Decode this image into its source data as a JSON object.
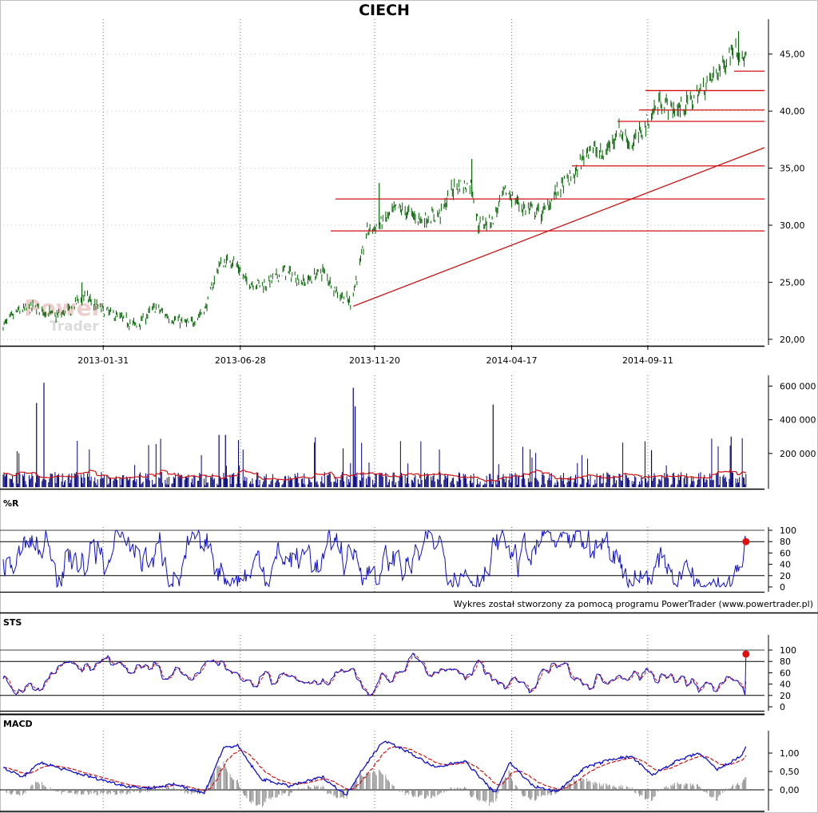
{
  "chart_title": "CIECH",
  "watermark": {
    "top": "Power",
    "bottom": "Trader"
  },
  "credit": "Wykres został stworzony za pomocą programu PowerTrader (www.powertrader.pl)",
  "colors": {
    "candle": "#006400",
    "volume": "#000080",
    "average": "#d01010",
    "line": "#1010cc",
    "grid": "#777777"
  },
  "chart_data": [
    {
      "type": "candlestick",
      "title": "CIECH",
      "xlabel": "",
      "ylabel": "",
      "x_ticks": [
        "2013-01-31",
        "2013-06-28",
        "2013-11-20",
        "2014-04-17",
        "2014-09-11"
      ],
      "y_ticks": [
        "20,00",
        "25,00",
        "30,00",
        "35,00",
        "40,00",
        "45,00"
      ],
      "ylim": [
        19.5,
        47.5
      ],
      "x_range": [
        "2012-10-15",
        "2015-01-15"
      ],
      "close_path": [
        [
          "2012-10-15",
          21.2
        ],
        [
          "2012-11-01",
          22.5
        ],
        [
          "2012-11-20",
          22.8
        ],
        [
          "2012-12-10",
          22.0
        ],
        [
          "2012-12-28",
          22.6
        ],
        [
          "2013-01-08",
          24.0
        ],
        [
          "2013-01-25",
          22.8
        ],
        [
          "2013-02-15",
          22.0
        ],
        [
          "2013-03-08",
          21.2
        ],
        [
          "2013-03-28",
          22.8
        ],
        [
          "2013-04-15",
          21.8
        ],
        [
          "2013-05-05",
          21.3
        ],
        [
          "2013-05-22",
          22.8
        ],
        [
          "2013-06-05",
          26.5
        ],
        [
          "2013-06-20",
          27.0
        ],
        [
          "2013-07-05",
          25.0
        ],
        [
          "2013-07-25",
          24.8
        ],
        [
          "2013-08-15",
          26.0
        ],
        [
          "2013-09-05",
          25.0
        ],
        [
          "2013-09-25",
          26.0
        ],
        [
          "2013-10-12",
          24.0
        ],
        [
          "2013-10-25",
          23.2
        ],
        [
          "2013-11-05",
          26.8
        ],
        [
          "2013-11-12",
          29.5
        ],
        [
          "2013-11-25",
          30.0
        ],
        [
          "2013-12-15",
          31.5
        ],
        [
          "2014-01-10",
          30.5
        ],
        [
          "2014-01-30",
          31.0
        ],
        [
          "2014-02-15",
          33.5
        ],
        [
          "2014-03-05",
          33.5
        ],
        [
          "2014-03-12",
          30.0
        ],
        [
          "2014-03-28",
          30.5
        ],
        [
          "2014-04-10",
          33.0
        ],
        [
          "2014-04-30",
          31.5
        ],
        [
          "2014-05-20",
          31.0
        ],
        [
          "2014-06-05",
          33.0
        ],
        [
          "2014-06-25",
          34.5
        ],
        [
          "2014-07-10",
          37.0
        ],
        [
          "2014-07-25",
          36.0
        ],
        [
          "2014-08-10",
          38.5
        ],
        [
          "2014-08-25",
          37.0
        ],
        [
          "2014-09-10",
          39.0
        ],
        [
          "2014-09-25",
          41.0
        ],
        [
          "2014-10-10",
          40.0
        ],
        [
          "2014-10-30",
          41.0
        ],
        [
          "2014-11-15",
          42.5
        ],
        [
          "2014-12-01",
          44.0
        ],
        [
          "2014-12-15",
          46.0
        ],
        [
          "2014-12-22",
          44.5
        ]
      ],
      "support_resistance_levels": [
        29.5,
        32.3,
        35.2,
        39.1,
        40.1,
        41.8,
        43.5
      ],
      "trend_line": {
        "from": [
          "2013-10-28",
          22.9
        ],
        "to": [
          "2015-01-15",
          36.8
        ]
      }
    },
    {
      "type": "bar",
      "title": "",
      "y_ticks": [
        "200 000",
        "400 000",
        "600 000"
      ],
      "ylim": [
        0,
        640000
      ],
      "volume_spikes": [
        [
          "2012-11-20",
          500000
        ],
        [
          "2012-11-28",
          620000
        ],
        [
          "2013-06-05",
          310000
        ],
        [
          "2013-06-12",
          310000
        ],
        [
          "2013-10-28",
          590000
        ],
        [
          "2013-10-30",
          480000
        ],
        [
          "2014-03-28",
          490000
        ],
        [
          "2014-09-15",
          220000
        ],
        [
          "2014-12-10",
          300000
        ]
      ],
      "typical_volume": 60000,
      "moving_average_level": 80000
    },
    {
      "type": "line",
      "title": "%R",
      "y_ticks": [
        "0",
        "20",
        "40",
        "60",
        "80",
        "100"
      ],
      "ylim": [
        0,
        100
      ],
      "reference_lines": [
        20,
        80
      ],
      "last_value": 80
    },
    {
      "type": "line",
      "title": "STS",
      "y_ticks": [
        "0",
        "20",
        "40",
        "60",
        "80",
        "100"
      ],
      "ylim": [
        0,
        100
      ],
      "reference_lines": [
        20,
        80
      ],
      "last_value": 93
    },
    {
      "type": "line",
      "title": "MACD",
      "y_ticks": [
        "0,00",
        "0,50",
        "1,00"
      ],
      "ylim": [
        -0.5,
        1.5
      ],
      "path": [
        [
          "2012-10-15",
          0.6
        ],
        [
          "2012-11-05",
          0.35
        ],
        [
          "2012-11-25",
          0.75
        ],
        [
          "2012-12-20",
          0.55
        ],
        [
          "2013-01-25",
          0.3
        ],
        [
          "2013-02-25",
          0.1
        ],
        [
          "2013-03-20",
          0.05
        ],
        [
          "2013-04-20",
          0.15
        ],
        [
          "2013-05-20",
          -0.1
        ],
        [
          "2013-06-10",
          1.15
        ],
        [
          "2013-06-25",
          1.2
        ],
        [
          "2013-07-20",
          0.3
        ],
        [
          "2013-08-20",
          0.1
        ],
        [
          "2013-09-25",
          0.35
        ],
        [
          "2013-10-20",
          -0.15
        ],
        [
          "2013-11-05",
          0.5
        ],
        [
          "2013-11-30",
          1.35
        ],
        [
          "2013-12-25",
          1.05
        ],
        [
          "2014-01-25",
          0.6
        ],
        [
          "2014-02-25",
          0.8
        ],
        [
          "2014-03-30",
          -0.1
        ],
        [
          "2014-04-15",
          0.75
        ],
        [
          "2014-05-10",
          0.1
        ],
        [
          "2014-06-05",
          -0.05
        ],
        [
          "2014-07-05",
          0.6
        ],
        [
          "2014-08-05",
          0.85
        ],
        [
          "2014-08-25",
          0.9
        ],
        [
          "2014-09-15",
          0.4
        ],
        [
          "2014-10-10",
          0.75
        ],
        [
          "2014-11-05",
          1.0
        ],
        [
          "2014-11-25",
          0.55
        ],
        [
          "2014-12-20",
          0.9
        ],
        [
          "2014-12-28",
          1.25
        ]
      ]
    }
  ]
}
